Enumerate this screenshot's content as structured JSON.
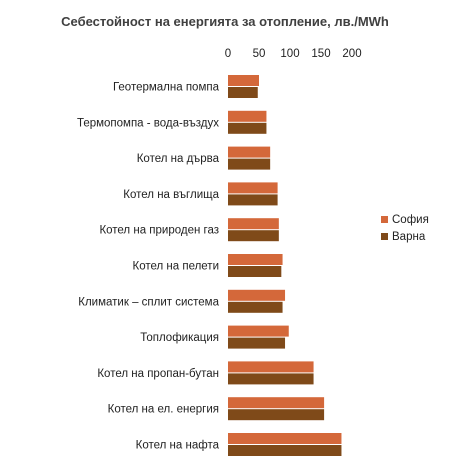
{
  "chart_data": {
    "type": "bar",
    "orientation": "horizontal",
    "title": "Себестойност на енергията за отопление, лв./MWh",
    "xlabel": "",
    "ylabel": "",
    "xlim": [
      0,
      200
    ],
    "x_ticks": [
      0,
      50,
      100,
      150,
      200
    ],
    "grid": false,
    "legend_position": "right",
    "categories": [
      "Геотермална помпа",
      "Термопомпа - вода-въздух",
      "Котел на дърва",
      "Котел на въглища",
      "Котел на природен газ",
      "Котел на пелети",
      "Климатик – сплит система",
      "Топлофикация",
      "Котел на пропан-бутан",
      "Котел на ел. енергия",
      "Котел на нафта"
    ],
    "series": [
      {
        "name": "София",
        "color": "#D4683A",
        "values": [
          50,
          62,
          68,
          80,
          82,
          88,
          92,
          98,
          138,
          155,
          183
        ]
      },
      {
        "name": "Варна",
        "color": "#7F4A19",
        "values": [
          48,
          62,
          68,
          80,
          82,
          86,
          88,
          92,
          138,
          155,
          183
        ]
      }
    ]
  }
}
